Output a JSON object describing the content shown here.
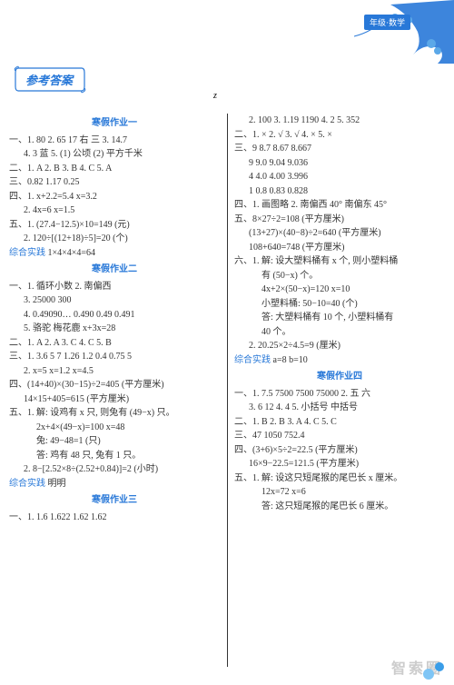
{
  "badge": "年级·数学",
  "title": "参考答案",
  "z": "z",
  "sections": [
    {
      "title": "寒假作业一",
      "lines": [
        {
          "t": "一、1. 80  2. 65  17  右  三  3. 14.7",
          "c": ""
        },
        {
          "t": "4. 3  蓝  5. (1) 公顷  (2) 平方千米",
          "c": "indent"
        },
        {
          "t": "二、1. A  2. B  3. B  4. C  5. A",
          "c": ""
        },
        {
          "t": "三、0.82  1.17  0.25",
          "c": ""
        },
        {
          "t": "四、1. x+2.2=5.4  x=3.2",
          "c": ""
        },
        {
          "t": "2. 4x=6  x=1.5",
          "c": "indent"
        },
        {
          "t": "五、1. (27.4−12.5)×10=149 (元)",
          "c": ""
        },
        {
          "t": "2. 120÷[(12+18)÷5]=20 (个)",
          "c": "indent"
        },
        {
          "t": "综合实践  1×4×4×4=64",
          "c": "",
          "p": true
        }
      ]
    },
    {
      "title": "寒假作业二",
      "lines": [
        {
          "t": "一、1. 循环小数  2. 南偏西",
          "c": ""
        },
        {
          "t": "3. 25000  300",
          "c": "indent"
        },
        {
          "t": "4. 0.49090…  0.490  0.49  0.491",
          "c": "indent"
        },
        {
          "t": "5. 骆驼  梅花鹿  x+3x=28",
          "c": "indent"
        },
        {
          "t": "二、1. A  2. A  3. C  4. C  5. B",
          "c": ""
        },
        {
          "t": "三、1. 3.6  5  7  1.26  1.2  0.4  0.75  5",
          "c": ""
        },
        {
          "t": "2. x=5  x=1.2  x=4.5",
          "c": "indent"
        },
        {
          "t": "四、(14+40)×(30−15)÷2=405 (平方厘米)",
          "c": ""
        },
        {
          "t": "14×15+405=615 (平方厘米)",
          "c": "indent"
        },
        {
          "t": "五、1. 解: 设鸡有 x 只, 则兔有 (49−x) 只。",
          "c": ""
        },
        {
          "t": "2x+4×(49−x)=100  x=48",
          "c": "indent2"
        },
        {
          "t": "兔: 49−48=1 (只)",
          "c": "indent2"
        },
        {
          "t": "答: 鸡有 48 只, 兔有 1 只。",
          "c": "indent2"
        },
        {
          "t": "2. 8−[2.52×8÷(2.52+0.84)]=2 (小时)",
          "c": "indent"
        },
        {
          "t": "综合实践  明明",
          "c": "",
          "p": true
        }
      ]
    },
    {
      "title": "寒假作业三",
      "lines": [
        {
          "t": "一、1. 1.6  1.622  1.62  1.62",
          "c": ""
        },
        {
          "t": "2. 100  3. 1.19  1190  4. 2  5. 352",
          "c": "indent"
        },
        {
          "t": "二、1. ×  2. √  3. √  4. ×  5. ×",
          "c": ""
        },
        {
          "t": "三、9  8.7  8.67  8.667",
          "c": ""
        },
        {
          "t": "9  9.0  9.04  9.036",
          "c": "indent"
        },
        {
          "t": "4  4.0  4.00  3.996",
          "c": "indent"
        },
        {
          "t": "1  0.8  0.83  0.828",
          "c": "indent"
        },
        {
          "t": "四、1. 画图略  2. 南偏西 40°  南偏东 45°",
          "c": ""
        },
        {
          "t": "五、8×27÷2=108 (平方厘米)",
          "c": ""
        },
        {
          "t": "(13+27)×(40−8)÷2=640 (平方厘米)",
          "c": "indent"
        },
        {
          "t": "108+640=748 (平方厘米)",
          "c": "indent"
        },
        {
          "t": "六、1. 解: 设大塑料桶有 x 个, 则小塑料桶",
          "c": ""
        },
        {
          "t": "有 (50−x) 个。",
          "c": "indent2"
        },
        {
          "t": "4x+2×(50−x)=120  x=10",
          "c": "indent2"
        },
        {
          "t": "小塑料桶: 50−10=40 (个)",
          "c": "indent2"
        },
        {
          "t": "答: 大塑料桶有 10 个, 小塑料桶有",
          "c": "indent2"
        },
        {
          "t": "40 个。",
          "c": "indent2"
        },
        {
          "t": "2. 20.25×2÷4.5=9 (厘米)",
          "c": "indent"
        },
        {
          "t": "综合实践  a=8  b=10",
          "c": "",
          "p": true
        }
      ]
    },
    {
      "title": "寒假作业四",
      "lines": [
        {
          "t": "一、1. 7.5  7500  7500  75000  2. 五  六",
          "c": ""
        },
        {
          "t": "3. 6  12  4. 4  5. 小括号  中括号",
          "c": "indent"
        },
        {
          "t": "二、1. B  2. B  3. A  4. C  5. C",
          "c": ""
        },
        {
          "t": "三、47  1050  752.4",
          "c": ""
        },
        {
          "t": "四、(3+6)×5÷2=22.5 (平方厘米)",
          "c": ""
        },
        {
          "t": "16×9−22.5=121.5 (平方厘米)",
          "c": "indent"
        },
        {
          "t": "五、1. 解: 设这只短尾猴的尾巴长 x 厘米。",
          "c": ""
        },
        {
          "t": "12x=72  x=6",
          "c": "indent2"
        },
        {
          "t": "答: 这只短尾猴的尾巴长 6 厘米。",
          "c": "indent2"
        }
      ]
    }
  ],
  "watermark": "智索圈",
  "colors": {
    "blue": "#2878d8",
    "text": "#333333",
    "dot1": "#3a9de8",
    "dot2": "#7fc5f5"
  }
}
